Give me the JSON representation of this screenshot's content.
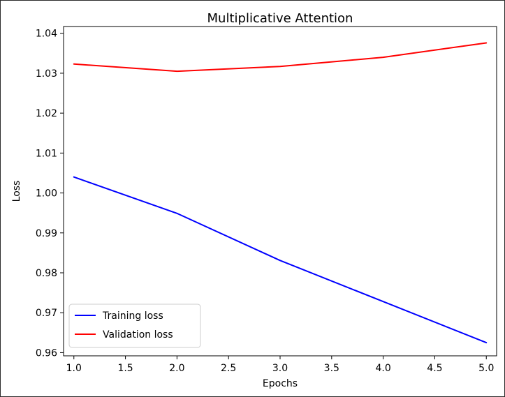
{
  "chart_data": {
    "type": "line",
    "title": "Multiplicative Attention",
    "xlabel": "Epochs",
    "ylabel": "Loss",
    "xlim": [
      0.9,
      5.1
    ],
    "ylim": [
      0.9592,
      1.0417
    ],
    "xticks": [
      1.0,
      1.5,
      2.0,
      2.5,
      3.0,
      3.5,
      4.0,
      4.5,
      5.0
    ],
    "xtick_labels": [
      "1.0",
      "1.5",
      "2.0",
      "2.5",
      "3.0",
      "3.5",
      "4.0",
      "4.5",
      "5.0"
    ],
    "yticks": [
      0.96,
      0.97,
      0.98,
      0.99,
      1.0,
      1.01,
      1.02,
      1.03,
      1.04
    ],
    "ytick_labels": [
      "0.96",
      "0.97",
      "0.98",
      "0.99",
      "1.00",
      "1.01",
      "1.02",
      "1.03",
      "1.04"
    ],
    "grid": false,
    "legend_position": "lower-left",
    "x": [
      1,
      2,
      3,
      4,
      5
    ],
    "series": [
      {
        "name": "Training loss",
        "color": "#0000ff",
        "values": [
          1.004,
          0.9949,
          0.9831,
          0.9728,
          0.9625
        ]
      },
      {
        "name": "Validation loss",
        "color": "#ff0000",
        "values": [
          1.0323,
          1.0305,
          1.0317,
          1.034,
          1.0376
        ]
      }
    ]
  }
}
